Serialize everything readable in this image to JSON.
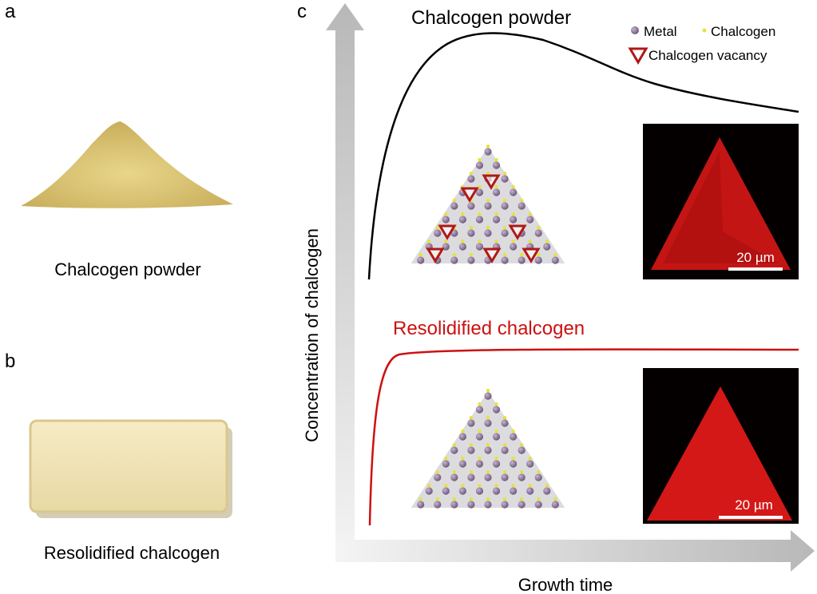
{
  "panel_a": {
    "letter": "a",
    "caption": "Chalcogen powder"
  },
  "panel_b": {
    "letter": "b",
    "caption": "Resolidified chalcogen"
  },
  "panel_c": {
    "letter": "c",
    "y_axis_label": "Concentration of chalcogen",
    "x_axis_label": "Growth time",
    "curve_top_label": "Chalcogen powder",
    "curve_bottom_label": "Resolidified chalcogen",
    "legend": {
      "metal": "Metal",
      "chalcogen": "Chalcogen",
      "vacancy": "Chalcogen vacancy"
    },
    "scale_bar_top": "20 µm",
    "scale_bar_bottom": "20 µm"
  },
  "colors": {
    "metal": "#7a6488",
    "chalcogen": "#e6e23a",
    "vacancy": "#b01818",
    "resolidified_curve": "#cc1111",
    "powder_curve": "#000000",
    "fluorescence": "#d01515"
  }
}
